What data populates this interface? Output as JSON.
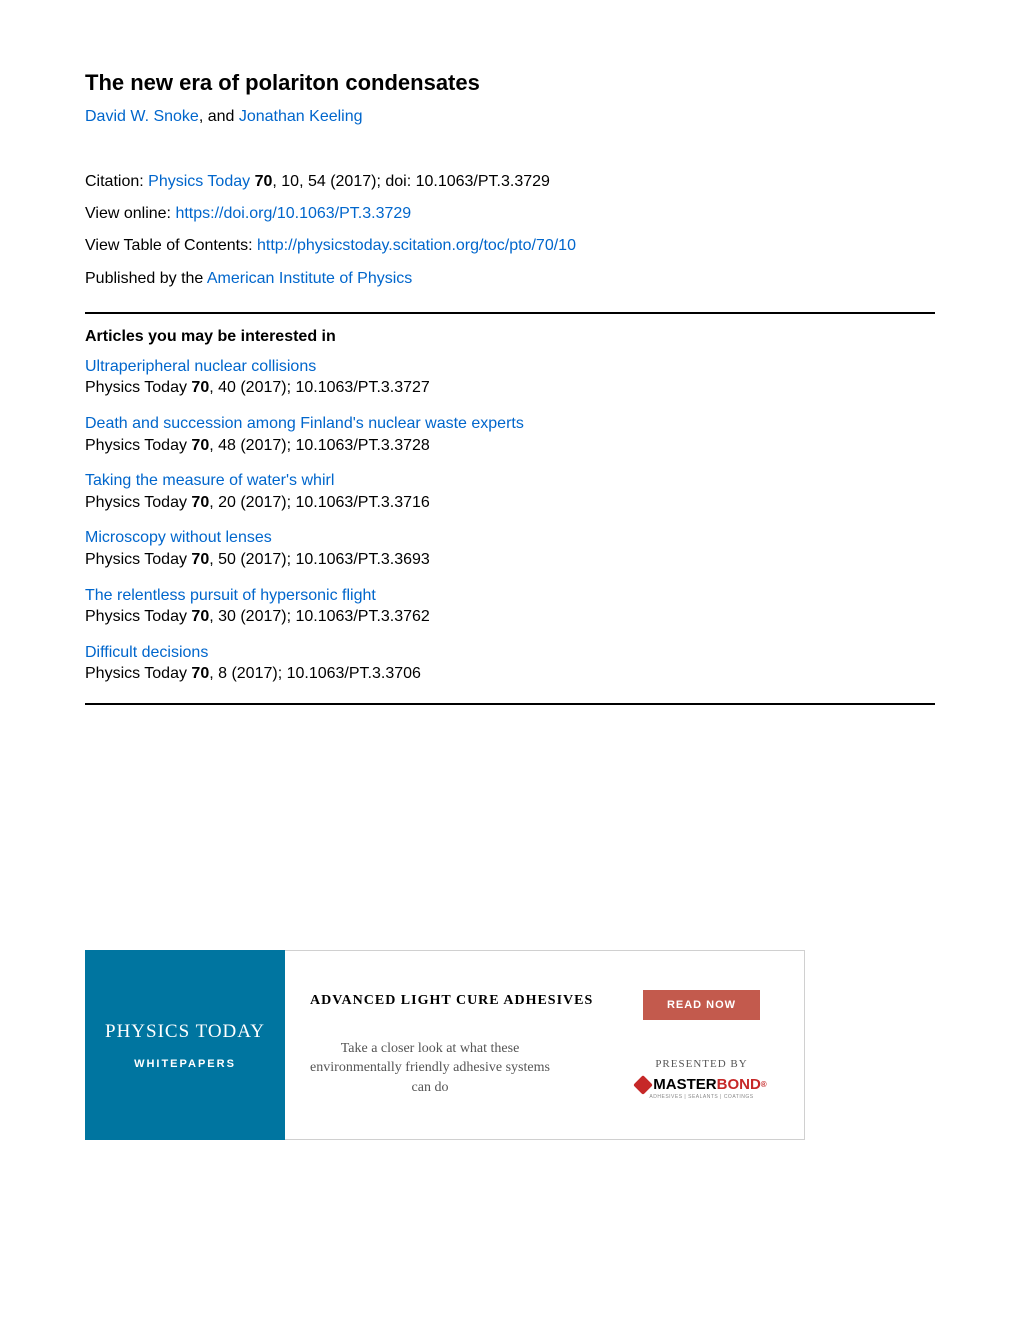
{
  "article": {
    "title": "The new era of polariton condensates",
    "authors": [
      {
        "name": "David W. Snoke"
      },
      {
        "name": "Jonathan Keeling"
      }
    ],
    "author_separator": ", and "
  },
  "citation": {
    "label": "Citation: ",
    "journal": "Physics Today",
    "volume": "70",
    "issue_pages": ", 10, 54 (2017); doi: 10.1063/PT.3.3729",
    "view_online_label": "View online: ",
    "view_online_url": "https://doi.org/10.1063/PT.3.3729",
    "toc_label": "View Table of Contents: ",
    "toc_url": "http://physicstoday.scitation.org/toc/pto/70/10",
    "published_label": "Published by the ",
    "publisher": "American Institute of Physics"
  },
  "related": {
    "heading": "Articles you may be interested in",
    "journal_name": "Physics Today ",
    "volume": "70",
    "items": [
      {
        "title": " Ultraperipheral nuclear collisions",
        "meta_suffix": ", 40 (2017); 10.1063/PT.3.3727"
      },
      {
        "title": " Death and succession among Finland's nuclear waste experts",
        "meta_suffix": ", 48 (2017); 10.1063/PT.3.3728"
      },
      {
        "title": " Taking the measure of water's whirl",
        "meta_suffix": ", 20 (2017); 10.1063/PT.3.3716"
      },
      {
        "title": " Microscopy without lenses",
        "meta_suffix": ", 50 (2017); 10.1063/PT.3.3693"
      },
      {
        "title": " The relentless pursuit of hypersonic flight",
        "meta_suffix": ", 30 (2017); 10.1063/PT.3.3762"
      },
      {
        "title": " Difficult decisions",
        "meta_suffix": ", 8 (2017); 10.1063/PT.3.3706"
      }
    ]
  },
  "ad": {
    "brand_magazine": "PHYSICS TODAY",
    "brand_sub": "WHITEPAPERS",
    "heading": "ADVANCED LIGHT CURE ADHESIVES",
    "subtext": "Take a closer look at what these environmentally friendly adhesive systems can do",
    "cta": "READ NOW",
    "presented": "PRESENTED BY",
    "sponsor_master": "MASTER",
    "sponsor_bond": "BOND",
    "sponsor_reg": "®",
    "sponsor_tagline": "ADHESIVES | SEALANTS | COATINGS"
  },
  "colors": {
    "link_color": "#0066cc",
    "ad_left_bg": "#0075a0",
    "cta_bg": "#c35a4d",
    "sponsor_red": "#c62828"
  }
}
